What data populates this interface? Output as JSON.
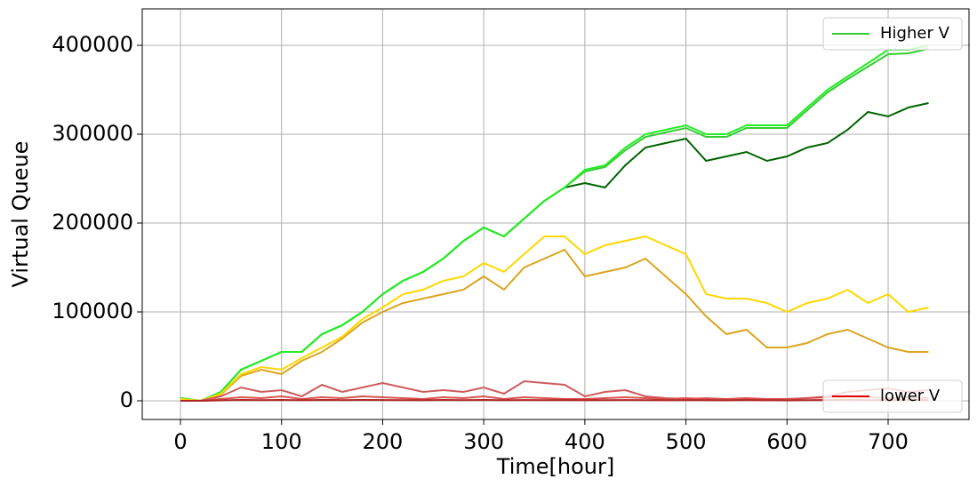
{
  "chart_data": {
    "type": "line",
    "x_label": "Time[hour]",
    "y_label": "Virtual Queue",
    "x": [
      0,
      20,
      40,
      60,
      80,
      100,
      120,
      140,
      160,
      180,
      200,
      220,
      240,
      260,
      280,
      300,
      320,
      340,
      360,
      380,
      400,
      420,
      440,
      460,
      480,
      500,
      520,
      540,
      560,
      580,
      600,
      620,
      640,
      660,
      680,
      700,
      720,
      740
    ],
    "series": [
      {
        "color": "#006400",
        "values": [
          3000,
          0,
          10000,
          35000,
          45000,
          55000,
          55000,
          75000,
          85000,
          100000,
          120000,
          135000,
          145000,
          160000,
          180000,
          195000,
          185000,
          205000,
          225000,
          240000,
          245000,
          240000,
          265000,
          285000,
          290000,
          295000,
          270000,
          275000,
          280000,
          270000,
          275000,
          285000,
          290000,
          305000,
          325000,
          320000,
          330000,
          335000
        ]
      },
      {
        "color": "#32cd32",
        "values": [
          3000,
          0,
          10000,
          35000,
          45000,
          55000,
          55000,
          75000,
          85000,
          100000,
          120000,
          135000,
          145000,
          160000,
          180000,
          195000,
          185000,
          205000,
          225000,
          240000,
          258000,
          263000,
          282000,
          297000,
          302000,
          307000,
          297000,
          297000,
          307000,
          307000,
          307000,
          327000,
          347000,
          362000,
          376000,
          390000,
          391000,
          396000
        ]
      },
      {
        "color": "#22ee22",
        "values": [
          3000,
          0,
          10000,
          35000,
          45000,
          55000,
          55000,
          75000,
          85000,
          100000,
          120000,
          135000,
          145000,
          160000,
          180000,
          195000,
          185000,
          205000,
          225000,
          240000,
          260000,
          265000,
          285000,
          300000,
          305000,
          310000,
          300000,
          300000,
          310000,
          310000,
          310000,
          330000,
          350000,
          365000,
          380000,
          395000,
          395000,
          400000
        ]
      },
      {
        "color": "#daa520",
        "values": [
          2000,
          0,
          7000,
          28000,
          35000,
          30000,
          45000,
          55000,
          70000,
          88000,
          100000,
          110000,
          115000,
          120000,
          125000,
          140000,
          125000,
          150000,
          160000,
          170000,
          140000,
          145000,
          150000,
          160000,
          140000,
          120000,
          95000,
          75000,
          80000,
          60000,
          60000,
          65000,
          75000,
          80000,
          70000,
          60000,
          55000,
          55000
        ]
      },
      {
        "color": "#ffd700",
        "values": [
          2000,
          0,
          8000,
          30000,
          38000,
          35000,
          48000,
          60000,
          72000,
          92000,
          105000,
          120000,
          125000,
          135000,
          140000,
          155000,
          145000,
          165000,
          185000,
          185000,
          165000,
          175000,
          180000,
          185000,
          175000,
          165000,
          120000,
          115000,
          115000,
          110000,
          100000,
          110000,
          115000,
          125000,
          110000,
          120000,
          100000,
          105000
        ]
      },
      {
        "color": "#cd5c5c",
        "values": [
          0,
          0,
          5000,
          15000,
          10000,
          12000,
          5000,
          18000,
          10000,
          15000,
          20000,
          15000,
          10000,
          12000,
          10000,
          15000,
          8000,
          22000,
          20000,
          18000,
          5000,
          10000,
          12000,
          5000,
          3000,
          2000,
          3000,
          2000,
          2000,
          2000,
          2000,
          3000,
          5000,
          10000,
          12000,
          14000,
          10000,
          12000
        ]
      },
      {
        "color": "#d9534f",
        "values": [
          0,
          0,
          2000,
          4000,
          3000,
          5000,
          2000,
          4000,
          3000,
          5000,
          4000,
          3000,
          2000,
          4000,
          3000,
          5000,
          2000,
          4000,
          3000,
          2000,
          2000,
          3000,
          4000,
          3000,
          2000,
          3000,
          2000,
          2000,
          3000,
          2000,
          2000,
          3000,
          4000,
          5000,
          4000,
          3000,
          4000,
          3000
        ]
      },
      {
        "color": "#b22222",
        "values": [
          0,
          0,
          500,
          1000,
          800,
          1000,
          600,
          1000,
          800,
          1000,
          900,
          700,
          600,
          1000,
          800,
          1000,
          600,
          900,
          800,
          700,
          600,
          800,
          900,
          700,
          600,
          700,
          600,
          500,
          700,
          600,
          500,
          700,
          900,
          1000,
          800,
          700,
          900,
          800
        ]
      }
    ],
    "legend": [
      {
        "label": "Higher V",
        "color": "#32cd32",
        "corner": "upper right"
      },
      {
        "label": "lower V",
        "color": "#e00000",
        "corner": "lower right"
      }
    ],
    "xlim": [
      -37.8,
      780
    ],
    "ylim": [
      -21000,
      441000
    ],
    "xticks": [
      0,
      100,
      200,
      300,
      400,
      500,
      600,
      700
    ],
    "yticks": [
      0,
      100000,
      200000,
      300000,
      400000
    ],
    "grid": true
  }
}
